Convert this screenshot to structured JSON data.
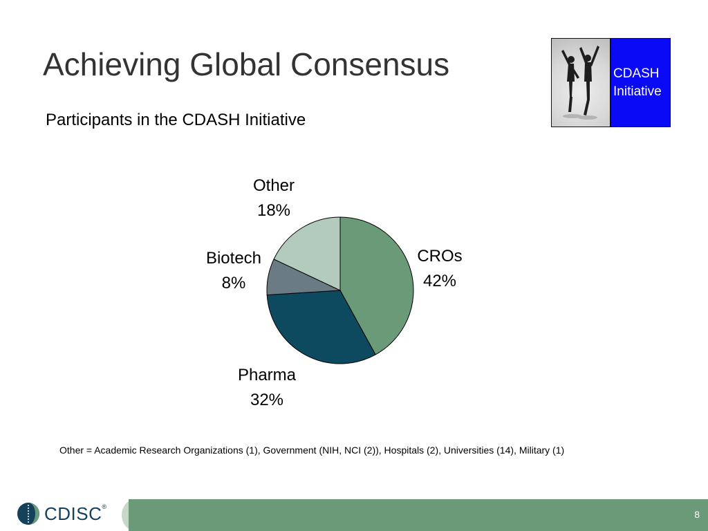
{
  "slide": {
    "title": "Achieving Global Consensus",
    "subtitle": "Participants in the CDASH Initiative",
    "footnote": "Other = Academic Research Organizations (1), Government (NIH, NCI (2)), Hospitals (2), Universities (14), Military (1)",
    "page_number": "8"
  },
  "logo": {
    "line1": "CDASH",
    "line2": "Initiative",
    "box_color": "#0a0af5"
  },
  "footer": {
    "brand": "CDISC",
    "trademark": "®",
    "bar_color": "#6a9a78"
  },
  "chart_data": {
    "type": "pie",
    "title": "",
    "slices": [
      {
        "label": "CROs",
        "percent_label": "42%",
        "value": 42,
        "color": "#6a9a78"
      },
      {
        "label": "Pharma",
        "percent_label": "32%",
        "value": 32,
        "color": "#0d4a60"
      },
      {
        "label": "Biotech",
        "percent_label": "8%",
        "value": 8,
        "color": "#6a7b83"
      },
      {
        "label": "Other",
        "percent_label": "18%",
        "value": 18,
        "color": "#b3cbbd"
      }
    ],
    "start": "12 o'clock",
    "direction": "clockwise",
    "legend": "none (labels outside slices)"
  }
}
